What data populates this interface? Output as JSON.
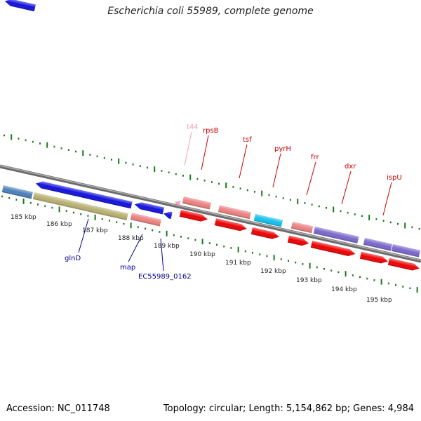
{
  "title": "Escherichia coli 55989, complete genome",
  "footer": {
    "accession": "Accession: NC_011748",
    "stats": "Topology: circular; Length: 5,154,862 bp; Genes: 4,984"
  },
  "scale": {
    "ticks": [
      "185 kbp",
      "186 kbp",
      "187 kbp",
      "188 kbp",
      "189 kbp",
      "190 kbp",
      "191 kbp",
      "192 kbp",
      "193 kbp",
      "194 kbp",
      "195 kbp"
    ]
  },
  "labels": {
    "upper": [
      {
        "text": "t44",
        "color": "#f4a0c0"
      },
      {
        "text": "rpsB",
        "color": "#cc0000"
      },
      {
        "text": "tsf",
        "color": "#cc0000"
      },
      {
        "text": "pyrH",
        "color": "#cc0000"
      },
      {
        "text": "frr",
        "color": "#cc0000"
      },
      {
        "text": "dxr",
        "color": "#cc0000"
      },
      {
        "text": "ispU",
        "color": "#cc0000"
      }
    ],
    "lower": [
      {
        "text": "glnD",
        "color": "#00008b"
      },
      {
        "text": "map",
        "color": "#00008b"
      },
      {
        "text": "EC55989_0162",
        "color": "#00008b"
      }
    ]
  },
  "colors": {
    "backbone": "#808080",
    "tick_marks": "#1a7a1a",
    "cds_forward": "#ee0000",
    "cds_reverse": "#1010dd",
    "cds_salmon": "#ec8080",
    "cds_purple": "#7a66cc",
    "cds_olive": "#b8b070",
    "cds_steel": "#4a80bb",
    "cds_cyan": "#12c0ee",
    "trna": "#f4a0c0"
  }
}
